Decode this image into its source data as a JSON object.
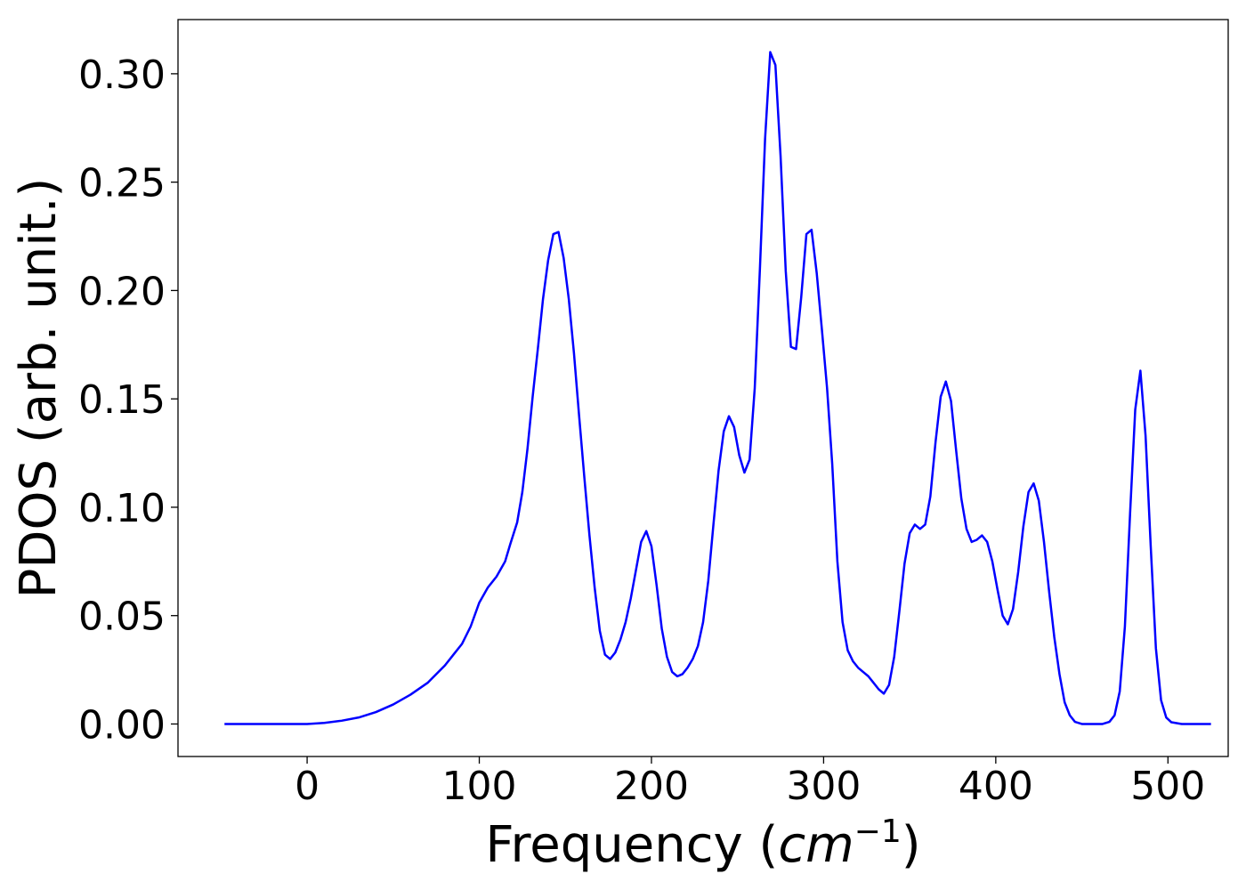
{
  "chart_data": {
    "type": "line",
    "xlabel": "Frequency (",
    "xlabel_math": "cm",
    "xlabel_sup": "−1",
    "xlabel_close": ")",
    "ylabel": "PDOS (arb. unit.)",
    "xlim": [
      -75,
      535
    ],
    "ylim": [
      -0.015,
      0.325
    ],
    "x_ticks": [
      0,
      100,
      200,
      300,
      400,
      500
    ],
    "x_tick_labels": [
      "0",
      "100",
      "200",
      "300",
      "400",
      "500"
    ],
    "y_ticks": [
      0.0,
      0.05,
      0.1,
      0.15,
      0.2,
      0.25,
      0.3
    ],
    "y_tick_labels": [
      "0.00",
      "0.05",
      "0.10",
      "0.15",
      "0.20",
      "0.25",
      "0.30"
    ],
    "grid": false,
    "line_color": "#0000ff",
    "series": [
      {
        "points": [
          [
            -48,
            0.0
          ],
          [
            -20,
            0.0
          ],
          [
            0,
            0.0
          ],
          [
            10,
            0.0005
          ],
          [
            20,
            0.0015
          ],
          [
            30,
            0.003
          ],
          [
            40,
            0.0055
          ],
          [
            50,
            0.009
          ],
          [
            60,
            0.0135
          ],
          [
            70,
            0.019
          ],
          [
            80,
            0.027
          ],
          [
            90,
            0.037
          ],
          [
            95,
            0.045
          ],
          [
            100,
            0.056
          ],
          [
            105,
            0.063
          ],
          [
            110,
            0.068
          ],
          [
            115,
            0.075
          ],
          [
            118,
            0.083
          ],
          [
            122,
            0.093
          ],
          [
            125,
            0.107
          ],
          [
            128,
            0.127
          ],
          [
            131,
            0.151
          ],
          [
            134,
            0.173
          ],
          [
            137,
            0.196
          ],
          [
            140,
            0.214
          ],
          [
            143,
            0.226
          ],
          [
            146,
            0.227
          ],
          [
            149,
            0.215
          ],
          [
            152,
            0.196
          ],
          [
            155,
            0.171
          ],
          [
            158,
            0.142
          ],
          [
            161,
            0.114
          ],
          [
            164,
            0.087
          ],
          [
            167,
            0.063
          ],
          [
            170,
            0.043
          ],
          [
            173,
            0.032
          ],
          [
            176,
            0.03
          ],
          [
            179,
            0.033
          ],
          [
            182,
            0.039
          ],
          [
            185,
            0.047
          ],
          [
            188,
            0.058
          ],
          [
            191,
            0.071
          ],
          [
            194,
            0.084
          ],
          [
            197,
            0.089
          ],
          [
            200,
            0.082
          ],
          [
            203,
            0.064
          ],
          [
            206,
            0.044
          ],
          [
            209,
            0.031
          ],
          [
            212,
            0.024
          ],
          [
            215,
            0.022
          ],
          [
            218,
            0.023
          ],
          [
            221,
            0.026
          ],
          [
            224,
            0.03
          ],
          [
            227,
            0.036
          ],
          [
            230,
            0.047
          ],
          [
            233,
            0.066
          ],
          [
            236,
            0.092
          ],
          [
            239,
            0.117
          ],
          [
            242,
            0.135
          ],
          [
            245,
            0.142
          ],
          [
            248,
            0.137
          ],
          [
            251,
            0.124
          ],
          [
            254,
            0.116
          ],
          [
            257,
            0.122
          ],
          [
            260,
            0.155
          ],
          [
            263,
            0.21
          ],
          [
            266,
            0.27
          ],
          [
            269,
            0.31
          ],
          [
            272,
            0.304
          ],
          [
            275,
            0.262
          ],
          [
            278,
            0.209
          ],
          [
            281,
            0.174
          ],
          [
            284,
            0.173
          ],
          [
            287,
            0.197
          ],
          [
            290,
            0.226
          ],
          [
            293,
            0.228
          ],
          [
            296,
            0.208
          ],
          [
            299,
            0.182
          ],
          [
            302,
            0.155
          ],
          [
            305,
            0.12
          ],
          [
            308,
            0.075
          ],
          [
            311,
            0.047
          ],
          [
            314,
            0.034
          ],
          [
            317,
            0.029
          ],
          [
            320,
            0.026
          ],
          [
            323,
            0.024
          ],
          [
            326,
            0.022
          ],
          [
            329,
            0.019
          ],
          [
            332,
            0.016
          ],
          [
            335,
            0.014
          ],
          [
            338,
            0.018
          ],
          [
            341,
            0.031
          ],
          [
            344,
            0.052
          ],
          [
            347,
            0.074
          ],
          [
            350,
            0.088
          ],
          [
            353,
            0.092
          ],
          [
            356,
            0.09
          ],
          [
            359,
            0.092
          ],
          [
            362,
            0.105
          ],
          [
            365,
            0.13
          ],
          [
            368,
            0.151
          ],
          [
            371,
            0.158
          ],
          [
            374,
            0.149
          ],
          [
            377,
            0.126
          ],
          [
            380,
            0.104
          ],
          [
            383,
            0.09
          ],
          [
            386,
            0.084
          ],
          [
            389,
            0.085
          ],
          [
            392,
            0.087
          ],
          [
            395,
            0.084
          ],
          [
            398,
            0.075
          ],
          [
            401,
            0.062
          ],
          [
            404,
            0.05
          ],
          [
            407,
            0.046
          ],
          [
            410,
            0.053
          ],
          [
            413,
            0.07
          ],
          [
            416,
            0.091
          ],
          [
            419,
            0.107
          ],
          [
            422,
            0.111
          ],
          [
            425,
            0.103
          ],
          [
            428,
            0.084
          ],
          [
            431,
            0.061
          ],
          [
            434,
            0.04
          ],
          [
            437,
            0.023
          ],
          [
            440,
            0.01
          ],
          [
            443,
            0.004
          ],
          [
            446,
            0.001
          ],
          [
            450,
            0.0
          ],
          [
            456,
            0.0
          ],
          [
            462,
            0.0
          ],
          [
            466,
            0.001
          ],
          [
            469,
            0.004
          ],
          [
            472,
            0.015
          ],
          [
            475,
            0.045
          ],
          [
            478,
            0.097
          ],
          [
            481,
            0.145
          ],
          [
            484,
            0.163
          ],
          [
            487,
            0.133
          ],
          [
            490,
            0.082
          ],
          [
            493,
            0.035
          ],
          [
            496,
            0.011
          ],
          [
            499,
            0.003
          ],
          [
            502,
            0.0008
          ],
          [
            508,
            0.0
          ],
          [
            525,
            0.0
          ]
        ]
      }
    ]
  }
}
